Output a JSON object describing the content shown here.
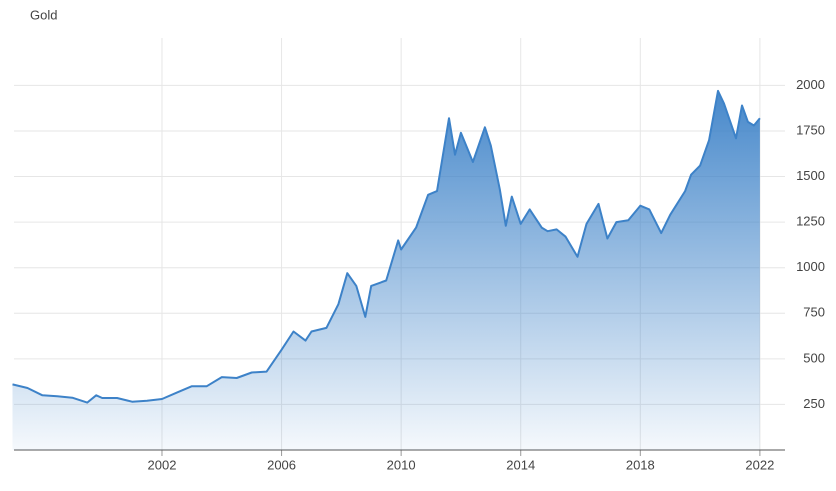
{
  "chart_data": {
    "type": "area",
    "title": "Gold",
    "x": [
      1997.0,
      1997.5,
      1998.0,
      1998.5,
      1999.0,
      1999.5,
      1999.8,
      2000.0,
      2000.5,
      2001.0,
      2001.5,
      2002.0,
      2002.5,
      2003.0,
      2003.5,
      2004.0,
      2004.5,
      2005.0,
      2005.5,
      2006.0,
      2006.4,
      2006.8,
      2007.0,
      2007.5,
      2007.9,
      2008.2,
      2008.5,
      2008.8,
      2009.0,
      2009.5,
      2009.9,
      2010.0,
      2010.5,
      2010.9,
      2011.2,
      2011.6,
      2011.8,
      2012.0,
      2012.4,
      2012.8,
      2013.0,
      2013.3,
      2013.5,
      2013.7,
      2014.0,
      2014.3,
      2014.7,
      2014.9,
      2015.2,
      2015.5,
      2015.9,
      2016.2,
      2016.6,
      2016.9,
      2017.2,
      2017.6,
      2018.0,
      2018.3,
      2018.7,
      2019.0,
      2019.5,
      2019.7,
      2020.0,
      2020.3,
      2020.6,
      2020.8,
      2021.2,
      2021.4,
      2021.6,
      2021.8,
      2022.0
    ],
    "series": [
      {
        "name": "Gold",
        "color": "#3d82c8",
        "values": [
          360,
          340,
          300,
          295,
          287,
          260,
          300,
          285,
          285,
          265,
          270,
          280,
          315,
          350,
          350,
          400,
          395,
          425,
          430,
          550,
          650,
          600,
          650,
          670,
          800,
          970,
          900,
          730,
          900,
          930,
          1150,
          1100,
          1220,
          1400,
          1420,
          1820,
          1620,
          1740,
          1580,
          1770,
          1670,
          1430,
          1230,
          1390,
          1240,
          1320,
          1220,
          1200,
          1210,
          1170,
          1060,
          1240,
          1350,
          1160,
          1250,
          1260,
          1340,
          1320,
          1190,
          1290,
          1420,
          1510,
          1560,
          1700,
          1970,
          1900,
          1710,
          1890,
          1800,
          1780,
          1820
        ]
      }
    ],
    "xlim": [
      1997.05,
      2022.84
    ],
    "ylim": [
      0,
      2260
    ],
    "xticks": [
      2002,
      2006,
      2010,
      2014,
      2018,
      2022
    ],
    "yticks": [
      250,
      500,
      750,
      1000,
      1250,
      1500,
      1750,
      2000
    ],
    "grid": true
  }
}
